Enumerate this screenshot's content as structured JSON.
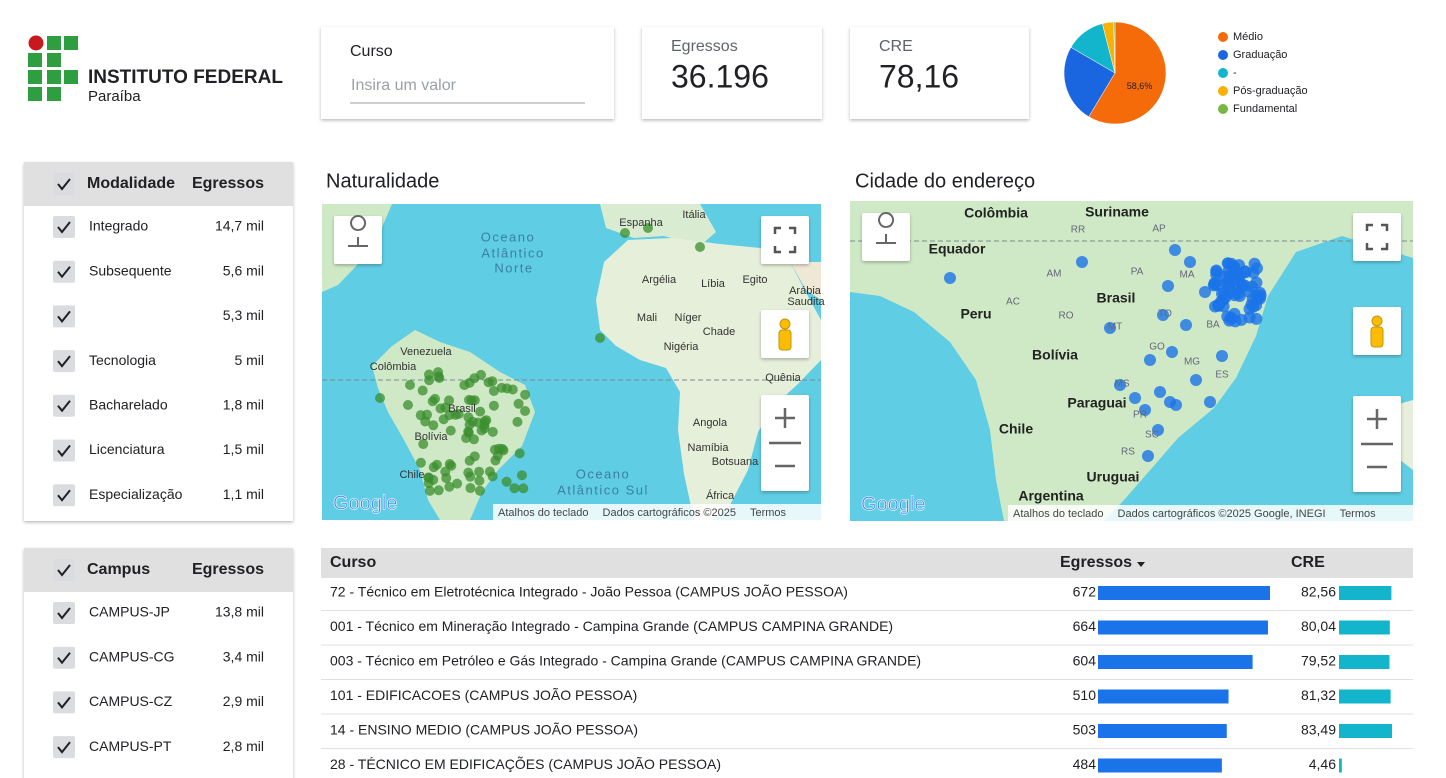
{
  "header": {
    "logo_title": "INSTITUTO FEDERAL",
    "logo_subtitle": "Paraíba"
  },
  "filter_curso": {
    "label": "Curso",
    "placeholder": "Insira um valor"
  },
  "scorecards": [
    {
      "label": "Egressos",
      "value": "36.196"
    },
    {
      "label": "CRE",
      "value": "78,16"
    }
  ],
  "chart_data": {
    "type": "pie",
    "categories": [
      "Médio",
      "Graduação",
      "-",
      "Pós-graduação",
      "Fundamental"
    ],
    "values": [
      58.6,
      24.8,
      12.6,
      3.6,
      0.4
    ],
    "value_labels": [
      "58,6%",
      null,
      null,
      null,
      null
    ],
    "colors": [
      "#f56b0a",
      "#1a66e0",
      "#12b5cb",
      "#fbb004",
      "#76b843"
    ]
  },
  "modalidade": {
    "header": [
      "Modalidade",
      "Egressos"
    ],
    "rows": [
      [
        "Integrado",
        "14,7 mil"
      ],
      [
        "Subsequente",
        "5,6 mil"
      ],
      [
        null,
        "5,3 mil"
      ],
      [
        "Tecnologia",
        "5 mil"
      ],
      [
        "Bacharelado",
        "1,8 mil"
      ],
      [
        "Licenciatura",
        "1,5 mil"
      ],
      [
        "Especialização",
        "1,1 mil"
      ]
    ]
  },
  "campus": {
    "header": [
      "Campus",
      "Egressos"
    ],
    "rows": [
      [
        "CAMPUS-JP",
        "13,8 mil"
      ],
      [
        "CAMPUS-CG",
        "3,4 mil"
      ],
      [
        "CAMPUS-CZ",
        "2,9 mil"
      ],
      [
        "CAMPUS-PT",
        "2,8 mil"
      ]
    ]
  },
  "maps": [
    {
      "title": "Naturalidade",
      "labels": [
        "Oceano",
        "Atlântico",
        "Norte",
        "Espanha",
        "Itália",
        "Argélia",
        "Líbia",
        "Egito",
        "Arábia",
        "Saudita",
        "Mali",
        "Níger",
        "Chade",
        "Nigéria",
        "Venezuela",
        "Colômbia",
        "Brasil",
        "Bolívia",
        "Chile",
        "Angola",
        "Namíbia",
        "Botsuana",
        "África",
        "Quênia",
        "Oceano",
        "Atlântico Sul"
      ],
      "footer": [
        "Atalhos do teclado",
        "Dados cartográficos ©2025",
        "Termos"
      ]
    },
    {
      "title": "Cidade do endereço",
      "labels": [
        "Colômbia",
        "Suriname",
        "Equador",
        "Peru",
        "Brasil",
        "Bolívia",
        "Paraguai",
        "Chile",
        "Uruguai",
        "Argentina",
        "RR",
        "AP",
        "AM",
        "PA",
        "MA",
        "AC",
        "RO",
        "MT",
        "TO",
        "GO",
        "MG",
        "ES",
        "MS",
        "PR",
        "SC",
        "RS",
        "BA"
      ],
      "footer": [
        "Atalhos do teclado",
        "Dados cartográficos ©2025 Google, INEGI",
        "Termos"
      ]
    }
  ],
  "google": "Google",
  "table": {
    "columns": [
      "Curso",
      "Egressos",
      "CRE"
    ],
    "rows": [
      {
        "curso": "72 - Técnico em Eletrotécnica Integrado - João Pessoa (CAMPUS JOÃO PESSOA)",
        "egressos": 672,
        "cre": 82.56,
        "cre_label": "82,56"
      },
      {
        "curso": "001 - Técnico em Mineração Integrado - Campina Grande (CAMPUS CAMPINA GRANDE)",
        "egressos": 664,
        "cre": 80.04,
        "cre_label": "80,04"
      },
      {
        "curso": "003 - Técnico em Petróleo e Gás Integrado - Campina Grande (CAMPUS CAMPINA GRANDE)",
        "egressos": 604,
        "cre": 79.52,
        "cre_label": "79,52"
      },
      {
        "curso": "101 - EDIFICACOES (CAMPUS JOÃO PESSOA)",
        "egressos": 510,
        "cre": 81.32,
        "cre_label": "81,32"
      },
      {
        "curso": "14 - ENSINO MEDIO (CAMPUS JOÃO PESSOA)",
        "egressos": 503,
        "cre": 83.49,
        "cre_label": "83,49"
      },
      {
        "curso": "28 - TÉCNICO EM EDIFICAÇÕES (CAMPUS JOÃO PESSOA)",
        "egressos": 484,
        "cre": 4.46,
        "cre_label": "4,46"
      }
    ]
  }
}
